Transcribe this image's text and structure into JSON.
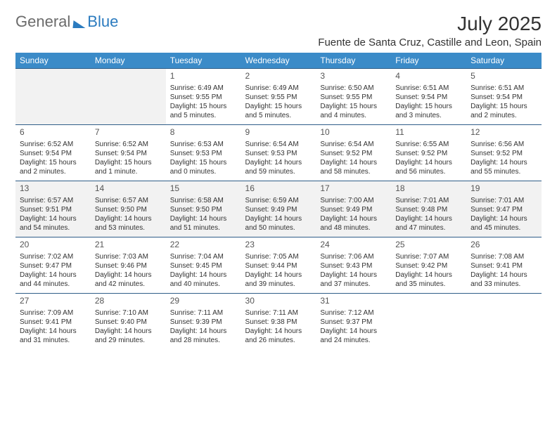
{
  "brand": {
    "part1": "General",
    "part2": "Blue"
  },
  "title": "July 2025",
  "location": "Fuente de Santa Cruz, Castille and Leon, Spain",
  "colors": {
    "header_bg": "#3b8bc8",
    "header_text": "#ffffff",
    "row_border": "#2f5d88",
    "shaded_bg": "#f2f2f2",
    "body_text": "#333333",
    "brand_grey": "#6b6b6b",
    "brand_blue": "#2b7bbf"
  },
  "day_headers": [
    "Sunday",
    "Monday",
    "Tuesday",
    "Wednesday",
    "Thursday",
    "Friday",
    "Saturday"
  ],
  "weeks": [
    {
      "shaded": false,
      "cells": [
        {
          "blank": true,
          "shaded": true
        },
        {
          "blank": true,
          "shaded": true
        },
        {
          "num": "1",
          "sunrise": "Sunrise: 6:49 AM",
          "sunset": "Sunset: 9:55 PM",
          "daylight1": "Daylight: 15 hours",
          "daylight2": "and 5 minutes."
        },
        {
          "num": "2",
          "sunrise": "Sunrise: 6:49 AM",
          "sunset": "Sunset: 9:55 PM",
          "daylight1": "Daylight: 15 hours",
          "daylight2": "and 5 minutes."
        },
        {
          "num": "3",
          "sunrise": "Sunrise: 6:50 AM",
          "sunset": "Sunset: 9:55 PM",
          "daylight1": "Daylight: 15 hours",
          "daylight2": "and 4 minutes."
        },
        {
          "num": "4",
          "sunrise": "Sunrise: 6:51 AM",
          "sunset": "Sunset: 9:54 PM",
          "daylight1": "Daylight: 15 hours",
          "daylight2": "and 3 minutes."
        },
        {
          "num": "5",
          "sunrise": "Sunrise: 6:51 AM",
          "sunset": "Sunset: 9:54 PM",
          "daylight1": "Daylight: 15 hours",
          "daylight2": "and 2 minutes."
        }
      ]
    },
    {
      "shaded": false,
      "cells": [
        {
          "num": "6",
          "sunrise": "Sunrise: 6:52 AM",
          "sunset": "Sunset: 9:54 PM",
          "daylight1": "Daylight: 15 hours",
          "daylight2": "and 2 minutes."
        },
        {
          "num": "7",
          "sunrise": "Sunrise: 6:52 AM",
          "sunset": "Sunset: 9:54 PM",
          "daylight1": "Daylight: 15 hours",
          "daylight2": "and 1 minute."
        },
        {
          "num": "8",
          "sunrise": "Sunrise: 6:53 AM",
          "sunset": "Sunset: 9:53 PM",
          "daylight1": "Daylight: 15 hours",
          "daylight2": "and 0 minutes."
        },
        {
          "num": "9",
          "sunrise": "Sunrise: 6:54 AM",
          "sunset": "Sunset: 9:53 PM",
          "daylight1": "Daylight: 14 hours",
          "daylight2": "and 59 minutes."
        },
        {
          "num": "10",
          "sunrise": "Sunrise: 6:54 AM",
          "sunset": "Sunset: 9:52 PM",
          "daylight1": "Daylight: 14 hours",
          "daylight2": "and 58 minutes."
        },
        {
          "num": "11",
          "sunrise": "Sunrise: 6:55 AM",
          "sunset": "Sunset: 9:52 PM",
          "daylight1": "Daylight: 14 hours",
          "daylight2": "and 56 minutes."
        },
        {
          "num": "12",
          "sunrise": "Sunrise: 6:56 AM",
          "sunset": "Sunset: 9:52 PM",
          "daylight1": "Daylight: 14 hours",
          "daylight2": "and 55 minutes."
        }
      ]
    },
    {
      "shaded": true,
      "cells": [
        {
          "num": "13",
          "sunrise": "Sunrise: 6:57 AM",
          "sunset": "Sunset: 9:51 PM",
          "daylight1": "Daylight: 14 hours",
          "daylight2": "and 54 minutes."
        },
        {
          "num": "14",
          "sunrise": "Sunrise: 6:57 AM",
          "sunset": "Sunset: 9:50 PM",
          "daylight1": "Daylight: 14 hours",
          "daylight2": "and 53 minutes."
        },
        {
          "num": "15",
          "sunrise": "Sunrise: 6:58 AM",
          "sunset": "Sunset: 9:50 PM",
          "daylight1": "Daylight: 14 hours",
          "daylight2": "and 51 minutes."
        },
        {
          "num": "16",
          "sunrise": "Sunrise: 6:59 AM",
          "sunset": "Sunset: 9:49 PM",
          "daylight1": "Daylight: 14 hours",
          "daylight2": "and 50 minutes."
        },
        {
          "num": "17",
          "sunrise": "Sunrise: 7:00 AM",
          "sunset": "Sunset: 9:49 PM",
          "daylight1": "Daylight: 14 hours",
          "daylight2": "and 48 minutes."
        },
        {
          "num": "18",
          "sunrise": "Sunrise: 7:01 AM",
          "sunset": "Sunset: 9:48 PM",
          "daylight1": "Daylight: 14 hours",
          "daylight2": "and 47 minutes."
        },
        {
          "num": "19",
          "sunrise": "Sunrise: 7:01 AM",
          "sunset": "Sunset: 9:47 PM",
          "daylight1": "Daylight: 14 hours",
          "daylight2": "and 45 minutes."
        }
      ]
    },
    {
      "shaded": false,
      "cells": [
        {
          "num": "20",
          "sunrise": "Sunrise: 7:02 AM",
          "sunset": "Sunset: 9:47 PM",
          "daylight1": "Daylight: 14 hours",
          "daylight2": "and 44 minutes."
        },
        {
          "num": "21",
          "sunrise": "Sunrise: 7:03 AM",
          "sunset": "Sunset: 9:46 PM",
          "daylight1": "Daylight: 14 hours",
          "daylight2": "and 42 minutes."
        },
        {
          "num": "22",
          "sunrise": "Sunrise: 7:04 AM",
          "sunset": "Sunset: 9:45 PM",
          "daylight1": "Daylight: 14 hours",
          "daylight2": "and 40 minutes."
        },
        {
          "num": "23",
          "sunrise": "Sunrise: 7:05 AM",
          "sunset": "Sunset: 9:44 PM",
          "daylight1": "Daylight: 14 hours",
          "daylight2": "and 39 minutes."
        },
        {
          "num": "24",
          "sunrise": "Sunrise: 7:06 AM",
          "sunset": "Sunset: 9:43 PM",
          "daylight1": "Daylight: 14 hours",
          "daylight2": "and 37 minutes."
        },
        {
          "num": "25",
          "sunrise": "Sunrise: 7:07 AM",
          "sunset": "Sunset: 9:42 PM",
          "daylight1": "Daylight: 14 hours",
          "daylight2": "and 35 minutes."
        },
        {
          "num": "26",
          "sunrise": "Sunrise: 7:08 AM",
          "sunset": "Sunset: 9:41 PM",
          "daylight1": "Daylight: 14 hours",
          "daylight2": "and 33 minutes."
        }
      ]
    },
    {
      "shaded": false,
      "cells": [
        {
          "num": "27",
          "sunrise": "Sunrise: 7:09 AM",
          "sunset": "Sunset: 9:41 PM",
          "daylight1": "Daylight: 14 hours",
          "daylight2": "and 31 minutes."
        },
        {
          "num": "28",
          "sunrise": "Sunrise: 7:10 AM",
          "sunset": "Sunset: 9:40 PM",
          "daylight1": "Daylight: 14 hours",
          "daylight2": "and 29 minutes."
        },
        {
          "num": "29",
          "sunrise": "Sunrise: 7:11 AM",
          "sunset": "Sunset: 9:39 PM",
          "daylight1": "Daylight: 14 hours",
          "daylight2": "and 28 minutes."
        },
        {
          "num": "30",
          "sunrise": "Sunrise: 7:11 AM",
          "sunset": "Sunset: 9:38 PM",
          "daylight1": "Daylight: 14 hours",
          "daylight2": "and 26 minutes."
        },
        {
          "num": "31",
          "sunrise": "Sunrise: 7:12 AM",
          "sunset": "Sunset: 9:37 PM",
          "daylight1": "Daylight: 14 hours",
          "daylight2": "and 24 minutes."
        },
        {
          "blank": true
        },
        {
          "blank": true
        }
      ]
    }
  ]
}
